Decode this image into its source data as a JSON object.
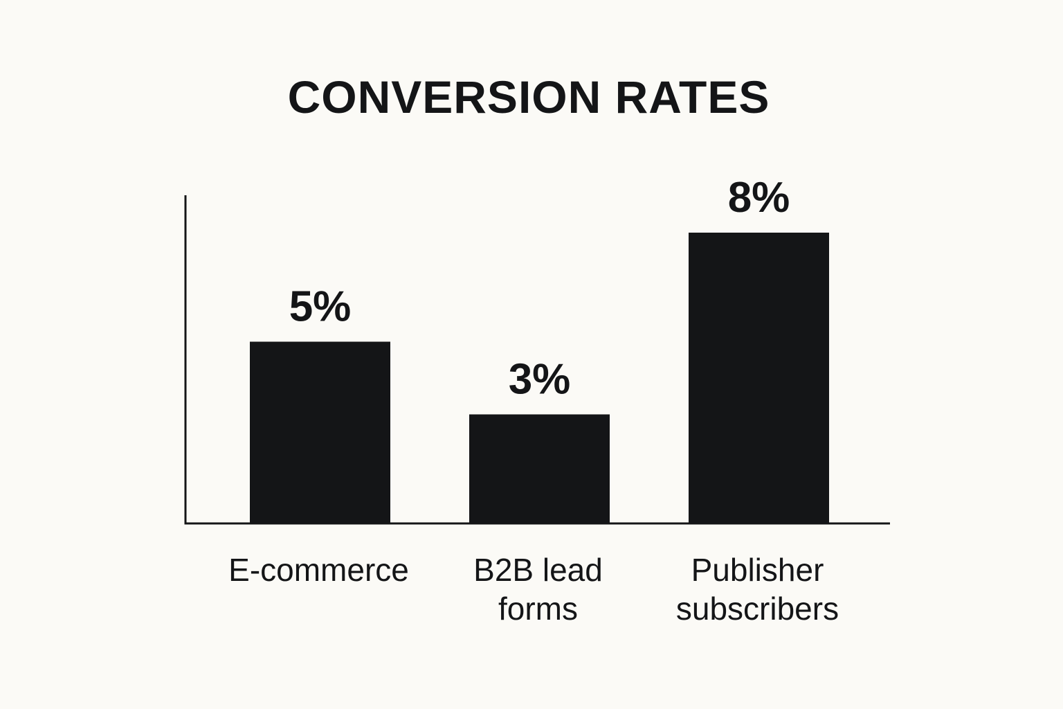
{
  "chart_data": {
    "type": "bar",
    "title": "CONVERSION RATES",
    "categories": [
      [
        "E-commerce"
      ],
      [
        "B2B lead",
        "forms"
      ],
      [
        "Publisher",
        "subscribers"
      ]
    ],
    "values": [
      5,
      3,
      8
    ],
    "value_labels": [
      "5%",
      "3%",
      "8%"
    ],
    "xlabel": "",
    "ylabel": "",
    "grid": false,
    "legend": "none"
  },
  "colors": {
    "background": "#fbfaf6",
    "bar": "#141517",
    "axis": "#141517",
    "text": "#141517"
  }
}
